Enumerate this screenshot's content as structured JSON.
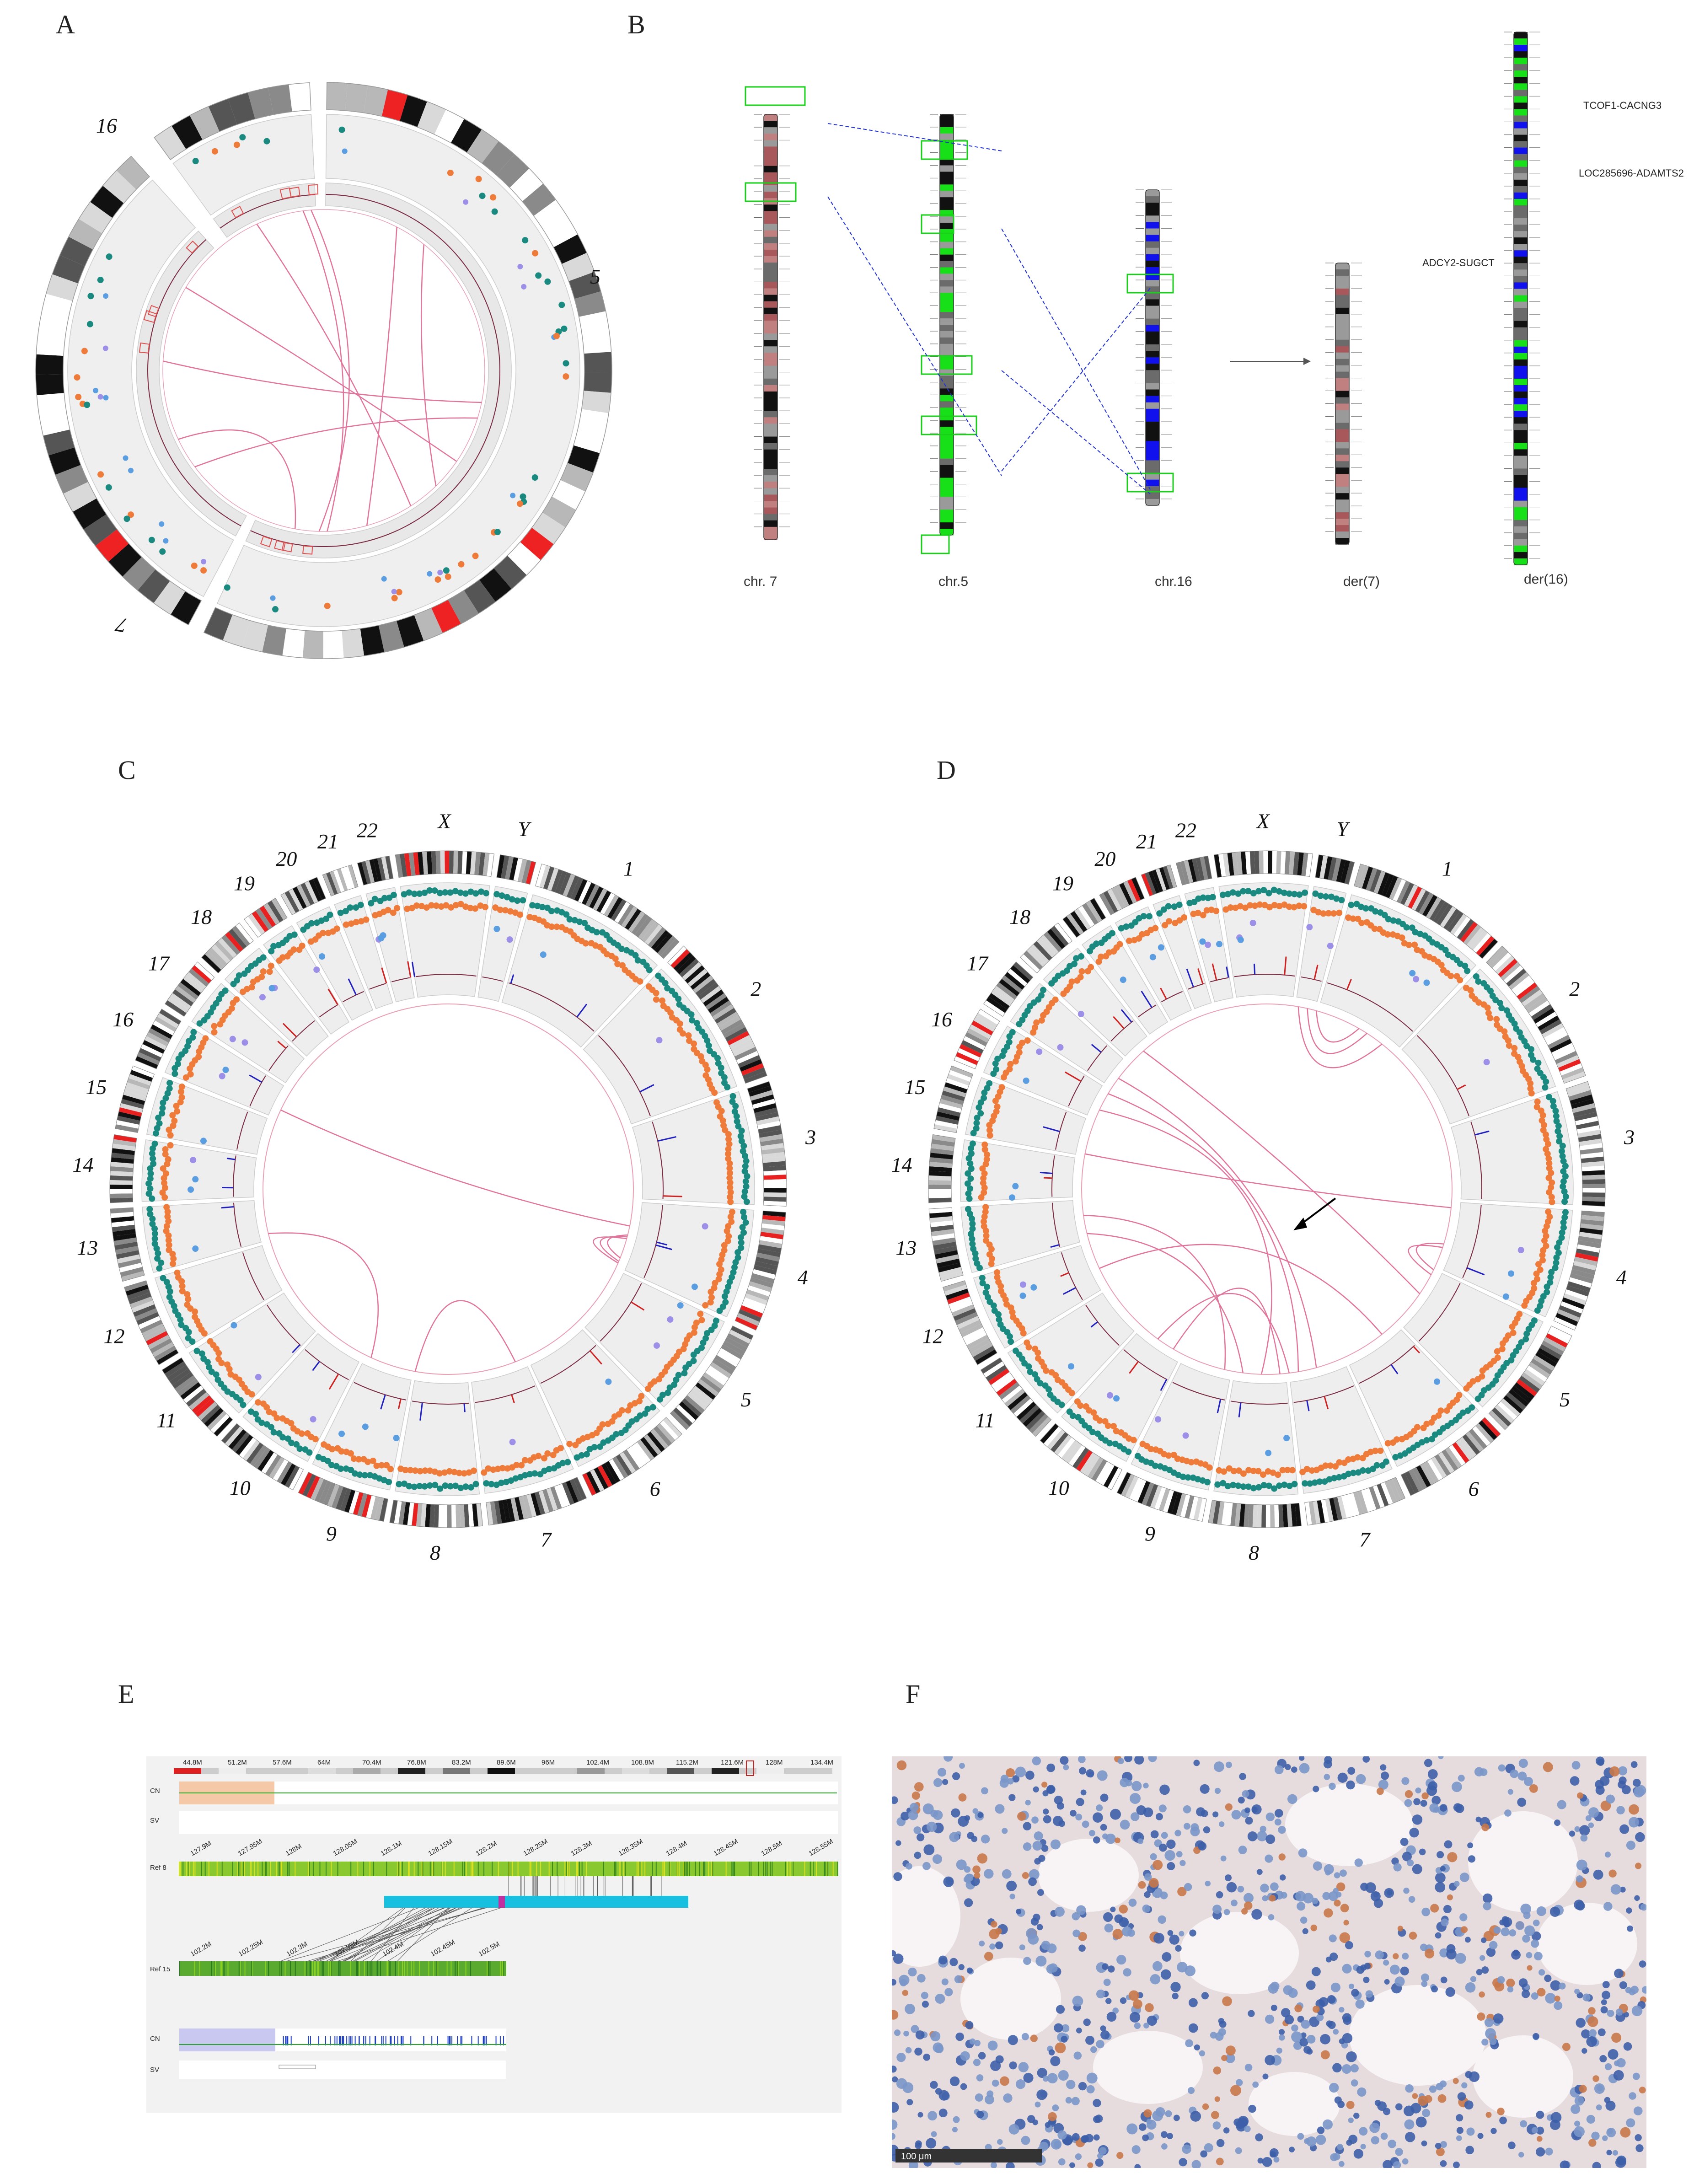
{
  "panels": {
    "A": {
      "letter": "A",
      "chromosome_labels": [
        "16",
        "5",
        "7"
      ]
    },
    "B": {
      "letter": "B",
      "chromosome_captions": [
        "chr. 7",
        "chr.5",
        "chr.16",
        "der(7)",
        "der(16)"
      ],
      "fusion_labels": [
        "ADCY2-SUGCT",
        "TCOF1-CACNG3",
        "LOC285696-ADAMTS2"
      ]
    },
    "C": {
      "letter": "C",
      "chromosome_labels": [
        "1",
        "2",
        "3",
        "4",
        "5",
        "6",
        "7",
        "8",
        "9",
        "10",
        "11",
        "12",
        "13",
        "14",
        "15",
        "16",
        "17",
        "18",
        "19",
        "20",
        "21",
        "22",
        "X",
        "Y"
      ]
    },
    "D": {
      "letter": "D",
      "chromosome_labels": [
        "1",
        "2",
        "3",
        "4",
        "5",
        "6",
        "7",
        "8",
        "9",
        "10",
        "11",
        "12",
        "13",
        "14",
        "15",
        "16",
        "17",
        "18",
        "19",
        "20",
        "21",
        "22",
        "X",
        "Y"
      ]
    },
    "E": {
      "letter": "E",
      "top_ticks": [
        "44.8M",
        "51.2M",
        "57.6M",
        "64M",
        "70.4M",
        "76.8M",
        "83.2M",
        "89.6M",
        "96M",
        "102.4M",
        "108.8M",
        "115.2M",
        "121.6M",
        "128M",
        "134.4M"
      ],
      "ref8_ticks": [
        "127.9M",
        "127.95M",
        "128M",
        "128.05M",
        "128.1M",
        "128.15M",
        "128.2M",
        "128.25M",
        "128.3M",
        "128.35M",
        "128.4M",
        "128.45M",
        "128.5M",
        "128.55M"
      ],
      "ref15_ticks": [
        "102.2M",
        "102.25M",
        "102.3M",
        "102.35M",
        "102.4M",
        "102.45M",
        "102.5M"
      ],
      "track_labels": {
        "cn_top": "CN",
        "sv_top": "SV",
        "ref8": "Ref 8",
        "ref15": "Ref 15",
        "cn_bottom": "CN",
        "sv_bottom": "SV"
      }
    },
    "F": {
      "letter": "F",
      "scale_bar": "100 μm"
    }
  },
  "colors": {
    "teal": "#1a8a80",
    "orange": "#ee7b3a",
    "purple": "#9c8fe8",
    "blue": "#5a9de0",
    "pink": "#e0749a",
    "green": "#18e018",
    "chrBlue": "#1111ee"
  }
}
